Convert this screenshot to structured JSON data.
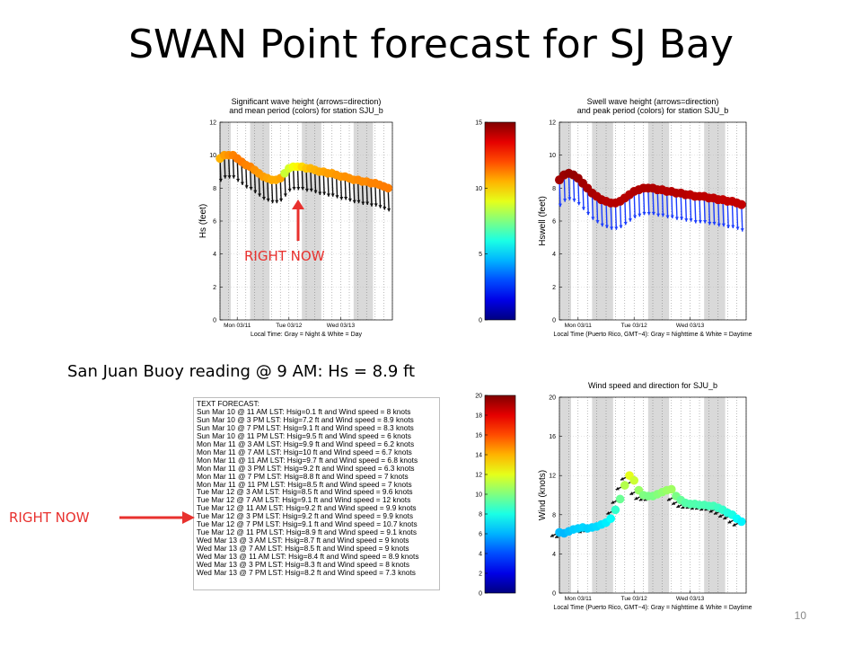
{
  "slide": {
    "title": "SWAN Point forecast for SJ Bay",
    "buoy_reading": "San Juan Buoy reading @ 9 AM: Hs = 8.9 ft",
    "right_now_1": "RIGHT NOW",
    "right_now_2": "RIGHT NOW",
    "page_number": "10",
    "annotation_color": "#e8312e"
  },
  "text_forecast": {
    "header": "TEXT FORECAST:",
    "lines": [
      "Sun Mar 10 @ 11 AM LST:  Hsig=0.1 ft and Wind speed = 8 knots",
      "Sun Mar 10 @  3 PM LST:  Hsig=7.2 ft and Wind speed = 8.9 knots",
      "Sun Mar 10 @  7 PM LST:  Hsig=9.1 ft and Wind speed = 8.3 knots",
      "Sun Mar 10 @ 11 PM LST:  Hsig=9.5 ft and Wind speed = 6 knots",
      "Mon Mar 11 @  3 AM LST:  Hsig=9.9 ft and Wind speed = 6.2 knots",
      "Mon Mar 11 @  7 AM LST:  Hsig=10 ft and Wind speed = 6.7 knots",
      "Mon Mar 11 @ 11 AM LST:  Hsig=9.7 ft and Wind speed = 6.8 knots",
      "Mon Mar 11 @  3 PM LST:  Hsig=9.2 ft and Wind speed = 6.3 knots",
      "Mon Mar 11 @  7 PM LST:  Hsig=8.8 ft and Wind speed = 7 knots",
      "Mon Mar 11 @ 11 PM LST:  Hsig=8.5 ft and Wind speed = 7 knots",
      "Tue Mar 12 @  3 AM LST:  Hsig=8.5 ft and Wind speed = 9.6 knots",
      "Tue Mar 12 @  7 AM LST:  Hsig=9.1 ft and Wind speed = 12 knots",
      "Tue Mar 12 @ 11 AM LST:  Hsig=9.2 ft and Wind speed = 9.9 knots",
      "Tue Mar 12 @  3 PM LST:  Hsig=9.2 ft and Wind speed = 9.9 knots",
      "Tue Mar 12 @  7 PM LST:  Hsig=9.1 ft and Wind speed = 10.7 knots",
      "Tue Mar 12 @ 11 PM LST:  Hsig=8.9 ft and Wind speed = 9.1 knots",
      "Wed Mar 13 @  3 AM LST:  Hsig=8.7 ft and Wind speed = 9 knots",
      "Wed Mar 13 @  7 AM LST:  Hsig=8.5 ft and Wind speed = 9 knots",
      "Wed Mar 13 @ 11 AM LST:  Hsig=8.4 ft and Wind speed = 8.9 knots",
      "Wed Mar 13 @  3 PM LST:  Hsig=8.3 ft and Wind speed = 8 knots",
      "Wed Mar 13 @  7 PM LST:  Hsig=8.2 ft and Wind speed = 7.3 knots"
    ]
  },
  "colorbars": [
    {
      "ticks": [
        "15",
        "10",
        "5",
        "0"
      ],
      "range": [
        0,
        15
      ]
    },
    {
      "ticks": [
        "20",
        "18",
        "16",
        "14",
        "12",
        "10",
        "8",
        "6",
        "4",
        "2",
        "0"
      ],
      "range": [
        0,
        20
      ]
    }
  ],
  "chart_data": [
    {
      "type": "scatter",
      "title": "Significant wave height (arrows=direction)",
      "subtitle": "and mean period (colors) for station SJU_b",
      "ylabel": "Hs (feet)",
      "xlabel": "Local Time: Gray = Night & White = Day",
      "xticklabels": [
        "Mon 03/11",
        "Tue 03/12",
        "Wed 03/13"
      ],
      "yticks": [
        0,
        2,
        4,
        6,
        8,
        10,
        12
      ],
      "ylim": [
        0,
        12
      ],
      "xlim": [
        0,
        80
      ],
      "night_bands": [
        [
          0,
          5
        ],
        [
          14,
          23
        ],
        [
          38,
          47
        ],
        [
          62,
          71
        ]
      ],
      "x_tick_hours": [
        8,
        32,
        56
      ],
      "x": [
        0,
        2,
        4,
        6,
        8,
        10,
        12,
        14,
        16,
        18,
        20,
        22,
        24,
        26,
        28,
        30,
        32,
        34,
        36,
        38,
        40,
        42,
        44,
        46,
        48,
        50,
        52,
        54,
        56,
        58,
        60,
        62,
        64,
        66,
        68,
        70,
        72,
        74,
        76,
        78
      ],
      "y": [
        9.8,
        10.0,
        10.0,
        10.0,
        9.8,
        9.6,
        9.4,
        9.3,
        9.1,
        8.9,
        8.7,
        8.6,
        8.5,
        8.5,
        8.6,
        8.9,
        9.2,
        9.3,
        9.3,
        9.3,
        9.2,
        9.2,
        9.1,
        9.0,
        9.0,
        8.9,
        8.9,
        8.8,
        8.7,
        8.7,
        8.6,
        8.5,
        8.5,
        8.4,
        8.4,
        8.3,
        8.3,
        8.2,
        8.1,
        8.0
      ],
      "period": [
        10.5,
        10.8,
        11.0,
        11.2,
        11.3,
        11.3,
        11.2,
        11.2,
        11.0,
        10.9,
        10.8,
        10.7,
        10.6,
        10.6,
        10.7,
        8.6,
        8.8,
        9.2,
        9.5,
        9.9,
        10.2,
        10.4,
        10.5,
        10.6,
        10.7,
        10.8,
        10.8,
        10.9,
        10.9,
        11.0,
        11.0,
        11.0,
        11.1,
        11.1,
        11.1,
        11.2,
        11.2,
        11.2,
        11.3,
        11.3
      ],
      "arrow_color": "#111111"
    },
    {
      "type": "scatter",
      "title": "Swell wave height (arrows=direction)",
      "subtitle": "and peak period (colors) for station SJU_b",
      "ylabel": "Hswell (feet)",
      "xlabel": "Local Time (Puerto Rico, GMT−4): Gray = Nighttime & White = Daytime",
      "xticklabels": [
        "Mon 03/11",
        "Tue 03/12",
        "Wed 03/13"
      ],
      "yticks": [
        0,
        2,
        4,
        6,
        8,
        10,
        12
      ],
      "ylim": [
        0,
        12
      ],
      "xlim": [
        0,
        80
      ],
      "night_bands": [
        [
          0,
          5
        ],
        [
          14,
          23
        ],
        [
          38,
          47
        ],
        [
          62,
          71
        ]
      ],
      "x_tick_hours": [
        8,
        32,
        56
      ],
      "x": [
        0,
        2,
        4,
        6,
        8,
        10,
        12,
        14,
        16,
        18,
        20,
        22,
        24,
        26,
        28,
        30,
        32,
        34,
        36,
        38,
        40,
        42,
        44,
        46,
        48,
        50,
        52,
        54,
        56,
        58,
        60,
        62,
        64,
        66,
        68,
        70,
        72,
        74,
        76,
        78
      ],
      "y": [
        8.5,
        8.8,
        8.9,
        8.8,
        8.6,
        8.3,
        8.0,
        7.7,
        7.5,
        7.3,
        7.2,
        7.1,
        7.1,
        7.2,
        7.4,
        7.6,
        7.8,
        7.9,
        8.0,
        8.0,
        8.0,
        7.9,
        7.9,
        7.8,
        7.8,
        7.7,
        7.7,
        7.6,
        7.6,
        7.5,
        7.5,
        7.5,
        7.4,
        7.4,
        7.3,
        7.3,
        7.2,
        7.2,
        7.1,
        7.0
      ],
      "period": [
        14.5,
        14.6,
        14.7,
        14.7,
        14.6,
        14.5,
        14.4,
        14.4,
        14.3,
        14.3,
        14.2,
        14.2,
        14.2,
        14.2,
        14.2,
        14.2,
        14.3,
        14.3,
        14.3,
        14.3,
        14.3,
        14.3,
        14.2,
        14.2,
        14.2,
        14.2,
        14.2,
        14.2,
        14.1,
        14.1,
        14.1,
        14.1,
        14.1,
        14.1,
        14.1,
        14.0,
        14.0,
        14.0,
        14.0,
        14.0
      ],
      "arrow_color": "#1a3cff"
    },
    {
      "type": "scatter",
      "title": "Wind speed and direction for SJU_b",
      "ylabel": "Wind (knots)",
      "xlabel": "Local Time (Puerto Rico, GMT−4): Gray = Nighttime & White = Daytime",
      "xticklabels": [
        "Mon 03/11",
        "Tue 03/12",
        "Wed 03/13"
      ],
      "yticks": [
        0,
        4,
        8,
        12,
        16,
        20
      ],
      "ylim": [
        0,
        20
      ],
      "xlim": [
        0,
        80
      ],
      "night_bands": [
        [
          0,
          5
        ],
        [
          14,
          23
        ],
        [
          38,
          47
        ],
        [
          62,
          71
        ]
      ],
      "x_tick_hours": [
        8,
        32,
        56
      ],
      "x": [
        0,
        2,
        4,
        6,
        8,
        10,
        12,
        14,
        16,
        18,
        20,
        22,
        24,
        26,
        28,
        30,
        32,
        34,
        36,
        38,
        40,
        42,
        44,
        46,
        48,
        50,
        52,
        54,
        56,
        58,
        60,
        62,
        64,
        66,
        68,
        70,
        72,
        74,
        76,
        78
      ],
      "y": [
        6.2,
        6.1,
        6.3,
        6.5,
        6.6,
        6.7,
        6.6,
        6.7,
        6.8,
        7.0,
        7.2,
        7.6,
        8.5,
        9.6,
        11.0,
        12.0,
        11.5,
        10.5,
        10.0,
        9.9,
        9.9,
        10.1,
        10.3,
        10.5,
        10.6,
        9.9,
        9.5,
        9.2,
        9.1,
        9.1,
        9.0,
        9.0,
        8.9,
        8.9,
        8.7,
        8.5,
        8.2,
        8.0,
        7.6,
        7.3
      ],
      "arrow_color": "#111111"
    }
  ]
}
